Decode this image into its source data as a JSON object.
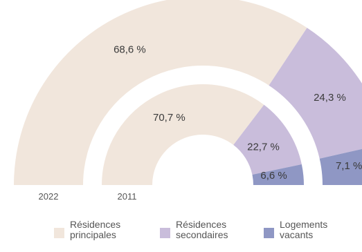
{
  "chart_data": {
    "type": "donut",
    "style": "semicircle, cropped on the right",
    "categories": [
      "Résidences principales",
      "Résidences secondaires",
      "Logements vacants"
    ],
    "colors": [
      "#f1e6dc",
      "#c9bddb",
      "#8f97c4"
    ],
    "series": [
      {
        "name": "2022",
        "values": [
          68.6,
          24.3,
          7.1
        ],
        "labels": [
          "68,6 %",
          "24,3 %",
          "7,1 %"
        ]
      },
      {
        "name": "2011",
        "values": [
          70.7,
          22.7,
          6.6
        ],
        "labels": [
          "70,7 %",
          "22,7 %",
          "6,6 %"
        ]
      }
    ],
    "legend": {
      "placement": "bottom",
      "items": [
        {
          "label": "Résidences\nprincipales",
          "color": "#f1e6dc"
        },
        {
          "label": "Résidences\nsecondaires",
          "color": "#c9bddb"
        },
        {
          "label": "Logements\nvacants",
          "color": "#8f97c4"
        }
      ]
    }
  }
}
